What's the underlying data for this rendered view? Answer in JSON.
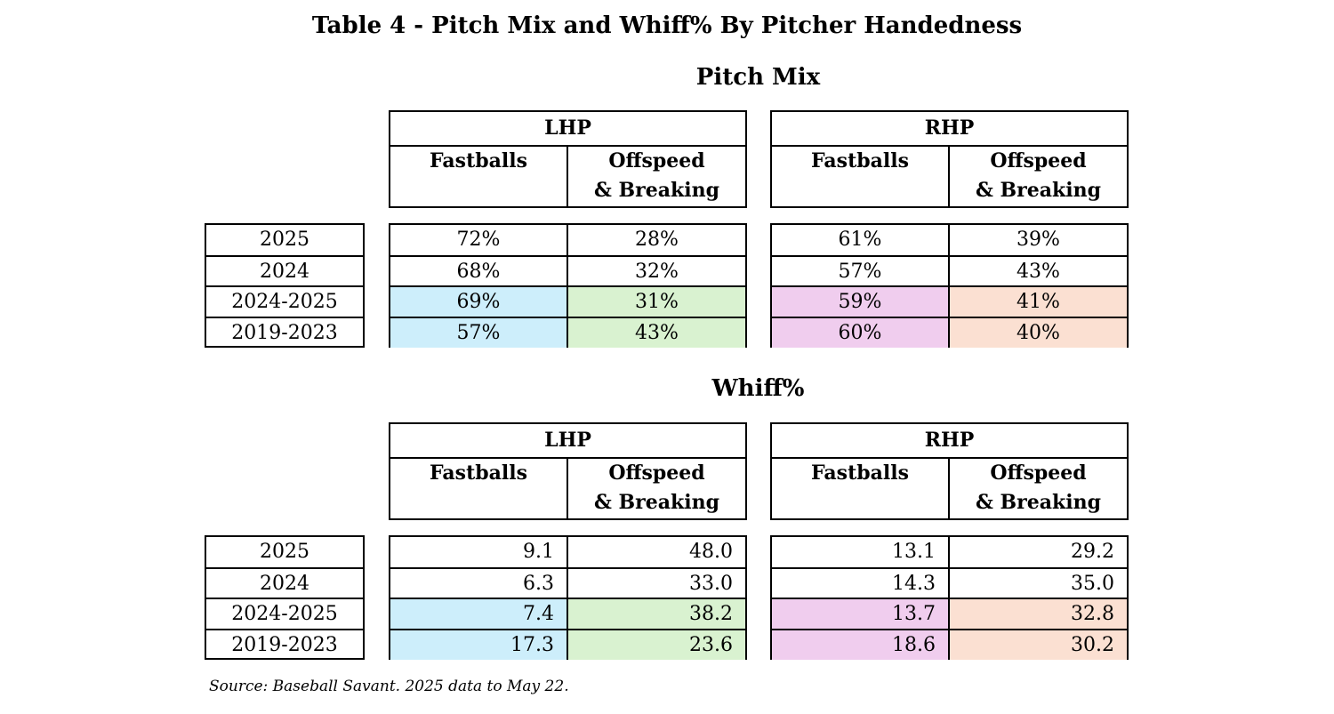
{
  "title": "Table 4 - Pitch Mix and Whiff% By Pitcher Handedness",
  "colors": {
    "lhp_fastballs": "#cdeefb",
    "lhp_offspeed": "#d9f2d0",
    "rhp_fastballs": "#f0cdee",
    "rhp_offspeed": "#fbe0d2"
  },
  "columns": {
    "lhp": "LHP",
    "rhp": "RHP",
    "fastballs": "Fastballs",
    "offspeed_1": "Offspeed",
    "offspeed_2": "& Breaking"
  },
  "years": [
    "2025",
    "2024",
    "2024-2025",
    "2019-2023"
  ],
  "sections": [
    {
      "title": "Pitch Mix",
      "lhp": [
        [
          "72%",
          "28%"
        ],
        [
          "68%",
          "32%"
        ],
        [
          "69%",
          "31%"
        ],
        [
          "57%",
          "43%"
        ]
      ],
      "rhp": [
        [
          "61%",
          "39%"
        ],
        [
          "57%",
          "43%"
        ],
        [
          "59%",
          "41%"
        ],
        [
          "60%",
          "40%"
        ]
      ]
    },
    {
      "title": "Whiff%",
      "lhp": [
        [
          "9.1",
          "48.0"
        ],
        [
          "6.3",
          "33.0"
        ],
        [
          "7.4",
          "38.2"
        ],
        [
          "17.3",
          "23.6"
        ]
      ],
      "rhp": [
        [
          "13.1",
          "29.2"
        ],
        [
          "14.3",
          "35.0"
        ],
        [
          "13.7",
          "32.8"
        ],
        [
          "18.6",
          "30.2"
        ]
      ]
    }
  ],
  "source": "Source: Baseball Savant. 2025 data to May 22."
}
